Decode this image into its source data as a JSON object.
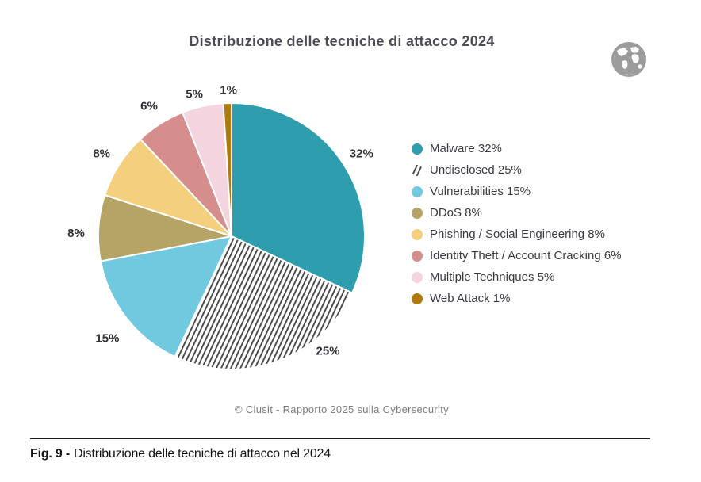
{
  "page": {
    "title": "Distribuzione delle tecniche di attacco 2024",
    "source_caption": "© Clusit - Rapporto 2025 sulla Cybersecurity",
    "figure_caption": {
      "prefix": "Fig. 9 -",
      "text": "Distribuzione delle tecniche di attacco nel 2024"
    },
    "header_icon": "globe-icon"
  },
  "chart_data": {
    "type": "pie",
    "title": "Distribuzione delle tecniche di attacco 2024",
    "start_angle_deg": 0,
    "direction": "clockwise",
    "legend_position": "right",
    "label_color": "#32323C",
    "slice_border_color": "#FFFFFF",
    "slices": [
      {
        "label": "Malware",
        "value": 32,
        "display": "32%",
        "color": "#2E9EAF",
        "hatch": false
      },
      {
        "label": "Undisclosed",
        "value": 25,
        "display": "25%",
        "color": "#FFFFFF",
        "hatch": true,
        "hatch_line_color": "#474747",
        "hatch_bg": "#FFFFFF",
        "label_angle_deg": 140,
        "label_r": 189
      },
      {
        "label": "Vulnerabilities",
        "value": 15,
        "display": "15%",
        "color": "#70C9DF",
        "hatch": false,
        "label_angle_deg": 230.5,
        "label_r": 203
      },
      {
        "label": "DDoS",
        "value": 8,
        "display": "8%",
        "color": "#B5A466",
        "hatch": false,
        "label_angle_deg": 271,
        "label_r": 196
      },
      {
        "label": "Phishing / Social Engineering",
        "value": 8,
        "display": "8%",
        "color": "#F4CF7E",
        "hatch": false
      },
      {
        "label": "Identity Theft / Account Cracking",
        "value": 6,
        "display": "6%",
        "color": "#D68E8C",
        "hatch": false
      },
      {
        "label": "Multiple Techniques",
        "value": 5,
        "display": "5%",
        "color": "#F3D4DF",
        "hatch": false,
        "label_angle_deg": 345.3,
        "label_r": 185
      },
      {
        "label": "Web Attack",
        "value": 1,
        "display": "1%",
        "color": "#B1790E",
        "hatch": false,
        "label_angle_deg": 358.8,
        "label_r": 184
      }
    ]
  }
}
